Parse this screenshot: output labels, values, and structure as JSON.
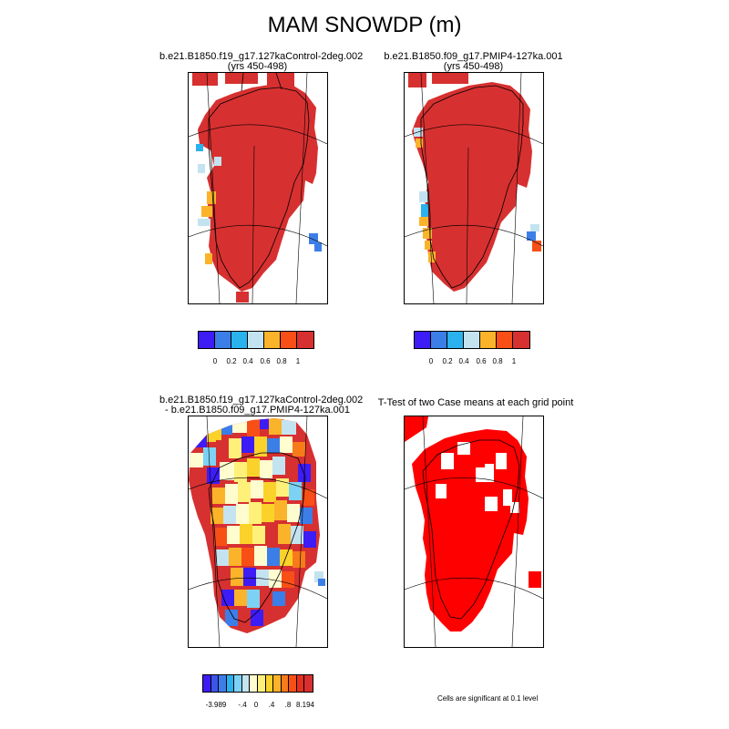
{
  "main_title": "MAM SNOWDP (m)",
  "panels": [
    {
      "id": "control",
      "title_lines": [
        "b.e21.B1850.f19_g17.127kaControl-2deg.002",
        "(yrs 450-498)"
      ]
    },
    {
      "id": "pmip4",
      "title_lines": [
        "b.e21.B1850.f09_g17.PMIP4-127ka.001",
        "(yrs 450-498)"
      ]
    },
    {
      "id": "difference",
      "title_lines": [
        "b.e21.B1850.f19_g17.127kaControl-2deg.002",
        "- b.e21.B1850.f09_g17.PMIP4-127ka.001"
      ]
    },
    {
      "id": "ttest",
      "title_lines": [
        "T-Test of two Case means at each grid point"
      ]
    }
  ],
  "legend_snow": {
    "colors": [
      "#3d1cf5",
      "#3c7ee8",
      "#29b2ee",
      "#c4e3f1",
      "#fbb32a",
      "#f84f16",
      "#d73030"
    ],
    "labels": [
      "0",
      "0.2",
      "0.4",
      "0.6",
      "0.8",
      "1"
    ]
  },
  "legend_diff": {
    "colors": [
      "#3d1cf5",
      "#3b54ea",
      "#3c7ee8",
      "#29b2ee",
      "#7cd2f4",
      "#c4e3f1",
      "#fffccf",
      "#fff07a",
      "#fbd22a",
      "#fbb32a",
      "#f87b1a",
      "#f84f16",
      "#e62f1f",
      "#d73030"
    ],
    "labels": [
      "-3.989",
      "-.4",
      "0",
      ".4",
      ".8",
      "8.194"
    ]
  },
  "significance_note": "Cells are significant at 0.1 level",
  "significance_color": "#ff0000"
}
